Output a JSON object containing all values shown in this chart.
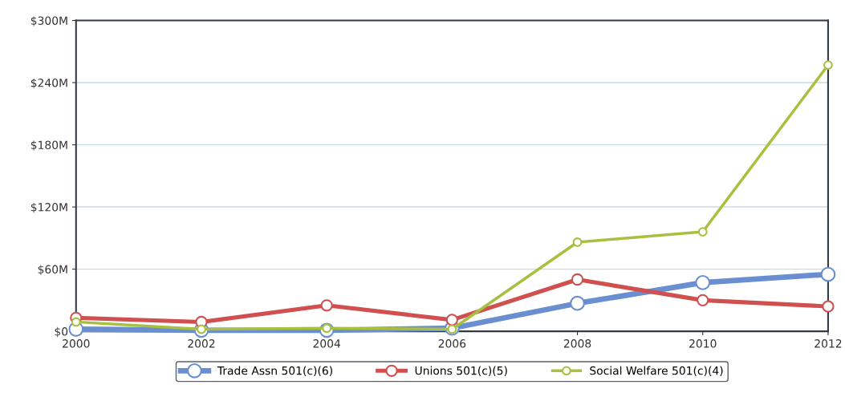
{
  "chart_data": {
    "type": "line",
    "x": [
      2000,
      2002,
      2004,
      2006,
      2008,
      2010,
      2012
    ],
    "xlim": [
      2000,
      2012
    ],
    "xticks": [
      2000,
      2002,
      2004,
      2006,
      2008,
      2010,
      2012
    ],
    "ylim": [
      0,
      300
    ],
    "yticks": [
      {
        "value": 0,
        "label": "$0"
      },
      {
        "value": 60,
        "label": "$60M"
      },
      {
        "value": 120,
        "label": "$120M"
      },
      {
        "value": 180,
        "label": "$180M"
      },
      {
        "value": 240,
        "label": "$240M"
      },
      {
        "value": 300,
        "label": "$300M"
      }
    ],
    "grid": "y",
    "legend": "bottom",
    "marker": "circle",
    "line_style": "solid",
    "series": [
      {
        "name": "Trade Assn 501(c)(6)",
        "color": "#6a8fd0",
        "values": [
          2,
          1,
          1,
          3,
          27,
          47,
          55
        ]
      },
      {
        "name": "Unions 501(c)(5)",
        "color": "#d05050",
        "values": [
          13,
          9,
          25,
          11,
          50,
          30,
          24
        ]
      },
      {
        "name": "Social Welfare 501(c)(4)",
        "color": "#a8c040",
        "values": [
          9,
          2,
          3,
          2,
          86,
          96,
          257
        ]
      }
    ]
  }
}
